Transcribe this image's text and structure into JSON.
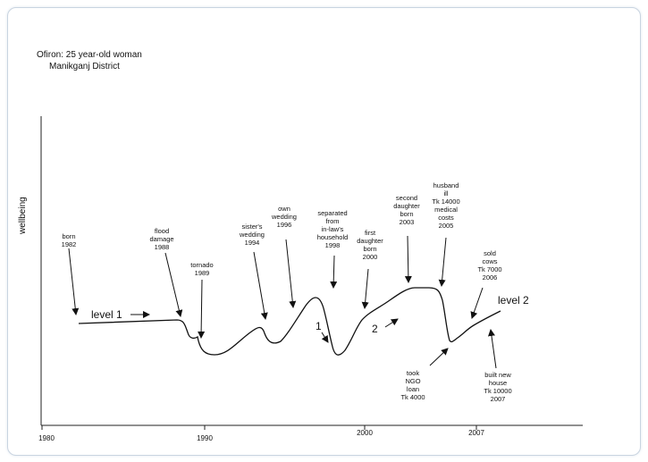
{
  "title": {
    "line1": "Ofiron: 25 year-old woman",
    "line2": "Manikganj District"
  },
  "y_axis_label": "wellbeing",
  "x_ticks": [
    "1980",
    "1990",
    "2000",
    "2007"
  ],
  "levels": [
    "level 1",
    "level 2"
  ],
  "markers": [
    "1",
    "2"
  ],
  "events": [
    {
      "id": "born",
      "lines": [
        "born",
        "1982"
      ]
    },
    {
      "id": "flood",
      "lines": [
        "flood",
        "damage",
        "1988"
      ]
    },
    {
      "id": "tornado",
      "lines": [
        "tornado",
        "1989"
      ]
    },
    {
      "id": "sister",
      "lines": [
        "sister's",
        "wedding",
        "1994"
      ]
    },
    {
      "id": "own",
      "lines": [
        "own",
        "wedding",
        "1996"
      ]
    },
    {
      "id": "separated",
      "lines": [
        "separated",
        "from",
        "in-law's",
        "household",
        "1998"
      ]
    },
    {
      "id": "first",
      "lines": [
        "first",
        "daughter",
        "born",
        "2000"
      ]
    },
    {
      "id": "second",
      "lines": [
        "second",
        "daughter",
        "born",
        "2003"
      ]
    },
    {
      "id": "husband",
      "lines": [
        "husband",
        "ill",
        "Tk 14000",
        "medical",
        "costs",
        "2005"
      ]
    },
    {
      "id": "sold",
      "lines": [
        "sold",
        "cows",
        "Tk 7000",
        "2006"
      ]
    },
    {
      "id": "took",
      "lines": [
        "took",
        "NGO",
        "loan",
        "Tk 4000"
      ]
    },
    {
      "id": "built",
      "lines": [
        "built new",
        "house",
        "Tk 10000",
        "2007"
      ]
    }
  ]
}
